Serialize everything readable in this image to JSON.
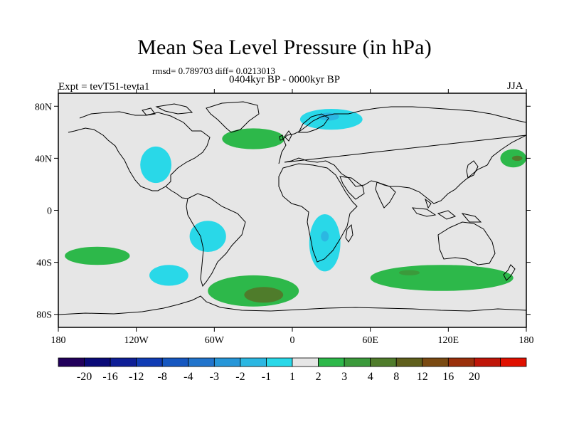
{
  "header": {
    "title": "Mean Sea Level Pressure (in hPa)",
    "rmsd_text": "rmsd= 0.789703 diff= 0.0213013",
    "period_text": "0404kyr BP - 0000kyr BP",
    "expt_text": "Expt = tevT51-tevta1",
    "season_text": "JJA"
  },
  "chart_data": {
    "type": "heatmap",
    "title": "Mean Sea Level Pressure (in hPa)",
    "variable": "Mean sea level pressure difference",
    "units": "hPa",
    "projection": "cylindrical equidistant",
    "x_range": [
      -180,
      180
    ],
    "y_range": [
      -90,
      90
    ],
    "x_ticks": [
      {
        "value": -180,
        "label": "180"
      },
      {
        "value": -120,
        "label": "120W"
      },
      {
        "value": -60,
        "label": "60W"
      },
      {
        "value": 0,
        "label": "0"
      },
      {
        "value": 60,
        "label": "60E"
      },
      {
        "value": 120,
        "label": "120E"
      },
      {
        "value": 180,
        "label": "180"
      }
    ],
    "y_ticks": [
      {
        "value": 80,
        "label": "80N"
      },
      {
        "value": 40,
        "label": "40N"
      },
      {
        "value": 0,
        "label": "0"
      },
      {
        "value": -40,
        "label": "40S"
      },
      {
        "value": -80,
        "label": "80S"
      }
    ],
    "colorbar": {
      "colors": [
        "#21005b",
        "#0a0a78",
        "#0e1e96",
        "#103cb4",
        "#1657c0",
        "#2174cc",
        "#2696d8",
        "#2bb7e2",
        "#29d8e8",
        "#e6e6e6",
        "#2db84a",
        "#3b9a3b",
        "#4f7c2b",
        "#5f5f1c",
        "#7a4a12",
        "#9a300b",
        "#bf1508",
        "#e01000"
      ],
      "labels": [
        "-20",
        "-16",
        "-12",
        "-8",
        "-4",
        "-3",
        "-2",
        "-1",
        "1",
        "2",
        "3",
        "4",
        "8",
        "12",
        "16",
        "20"
      ]
    },
    "regions": [
      {
        "name": "north-atlantic-high-positive",
        "level": "3",
        "color": "#4f7c2b",
        "centroid": [
          -35,
          55
        ],
        "rx": 12,
        "ry": 4
      },
      {
        "name": "north-atlantic-positive",
        "level": "1",
        "color": "#2db84a",
        "centroid": [
          -30,
          55
        ],
        "rx": 24,
        "ry": 8
      },
      {
        "name": "scandinavia-negative",
        "level": "-1",
        "color": "#29d8e8",
        "centroid": [
          30,
          70
        ],
        "rx": 24,
        "ry": 8
      },
      {
        "name": "scandinavia-negative-core",
        "level": "-2",
        "color": "#2bb7e2",
        "centroid": [
          28,
          72
        ],
        "rx": 8,
        "ry": 3
      },
      {
        "name": "north-pacific-east-positive",
        "level": "1",
        "color": "#2db84a",
        "centroid": [
          170,
          40
        ],
        "rx": 10,
        "ry": 7
      },
      {
        "name": "north-pacific-east-core",
        "level": "3",
        "color": "#4f7c2b",
        "centroid": [
          173,
          40
        ],
        "rx": 4,
        "ry": 2
      },
      {
        "name": "north-america-negative",
        "level": "-1",
        "color": "#29d8e8",
        "centroid": [
          -105,
          35
        ],
        "rx": 12,
        "ry": 14
      },
      {
        "name": "south-america-negative",
        "level": "-1",
        "color": "#29d8e8",
        "centroid": [
          -65,
          -20
        ],
        "rx": 14,
        "ry": 12
      },
      {
        "name": "southern-africa-negative",
        "level": "-1",
        "color": "#29d8e8",
        "centroid": [
          25,
          -25
        ],
        "rx": 12,
        "ry": 22
      },
      {
        "name": "southern-africa-core",
        "level": "-2",
        "color": "#2bb7e2",
        "centroid": [
          25,
          -20
        ],
        "rx": 3,
        "ry": 4
      },
      {
        "name": "south-pacific-positive",
        "level": "1",
        "color": "#2db84a",
        "centroid": [
          -150,
          -35
        ],
        "rx": 25,
        "ry": 7
      },
      {
        "name": "southeast-pacific-negative",
        "level": "-1",
        "color": "#29d8e8",
        "centroid": [
          -95,
          -50
        ],
        "rx": 15,
        "ry": 8
      },
      {
        "name": "south-atlantic-positive",
        "level": "1",
        "color": "#2db84a",
        "centroid": [
          -30,
          -62
        ],
        "rx": 35,
        "ry": 12
      },
      {
        "name": "south-atlantic-core",
        "level": "3",
        "color": "#4f7c2b",
        "centroid": [
          -22,
          -65
        ],
        "rx": 15,
        "ry": 6
      },
      {
        "name": "indian-ocean-positive",
        "level": "1",
        "color": "#2db84a",
        "centroid": [
          115,
          -52
        ],
        "rx": 55,
        "ry": 10
      },
      {
        "name": "indian-ocean-core",
        "level": "2",
        "color": "#3b9a3b",
        "centroid": [
          90,
          -48
        ],
        "rx": 8,
        "ry": 2
      }
    ]
  }
}
